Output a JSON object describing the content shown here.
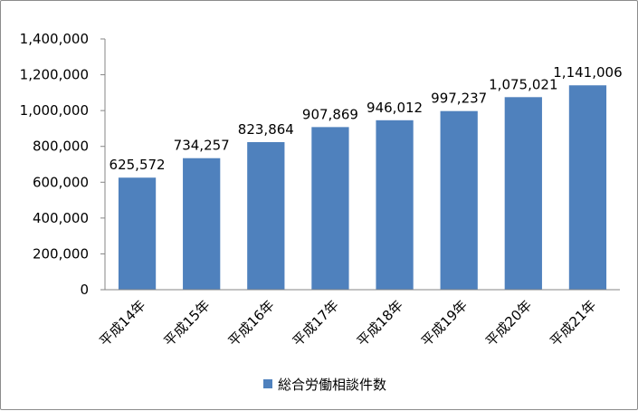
{
  "chart_data": {
    "type": "bar",
    "categories": [
      "平成14年",
      "平成15年",
      "平成16年",
      "平成17年",
      "平成18年",
      "平成19年",
      "平成20年",
      "平成21年"
    ],
    "series": [
      {
        "name": "総合労働相談件数",
        "values": [
          625572,
          734257,
          823864,
          907869,
          946012,
          997237,
          1075021,
          1141006
        ],
        "data_labels": [
          "625,572",
          "734,257",
          "823,864",
          "907,869",
          "946,012",
          "997,237",
          "1,075,021",
          "1,141,006"
        ]
      }
    ],
    "ylim": [
      0,
      1400000
    ],
    "y_ticks": [
      "0",
      "200,000",
      "400,000",
      "600,000",
      "800,000",
      "1,000,000",
      "1,200,000",
      "1,400,000"
    ],
    "grid": false,
    "legend_position": "bottom",
    "bar_color": "#4f81bd"
  }
}
